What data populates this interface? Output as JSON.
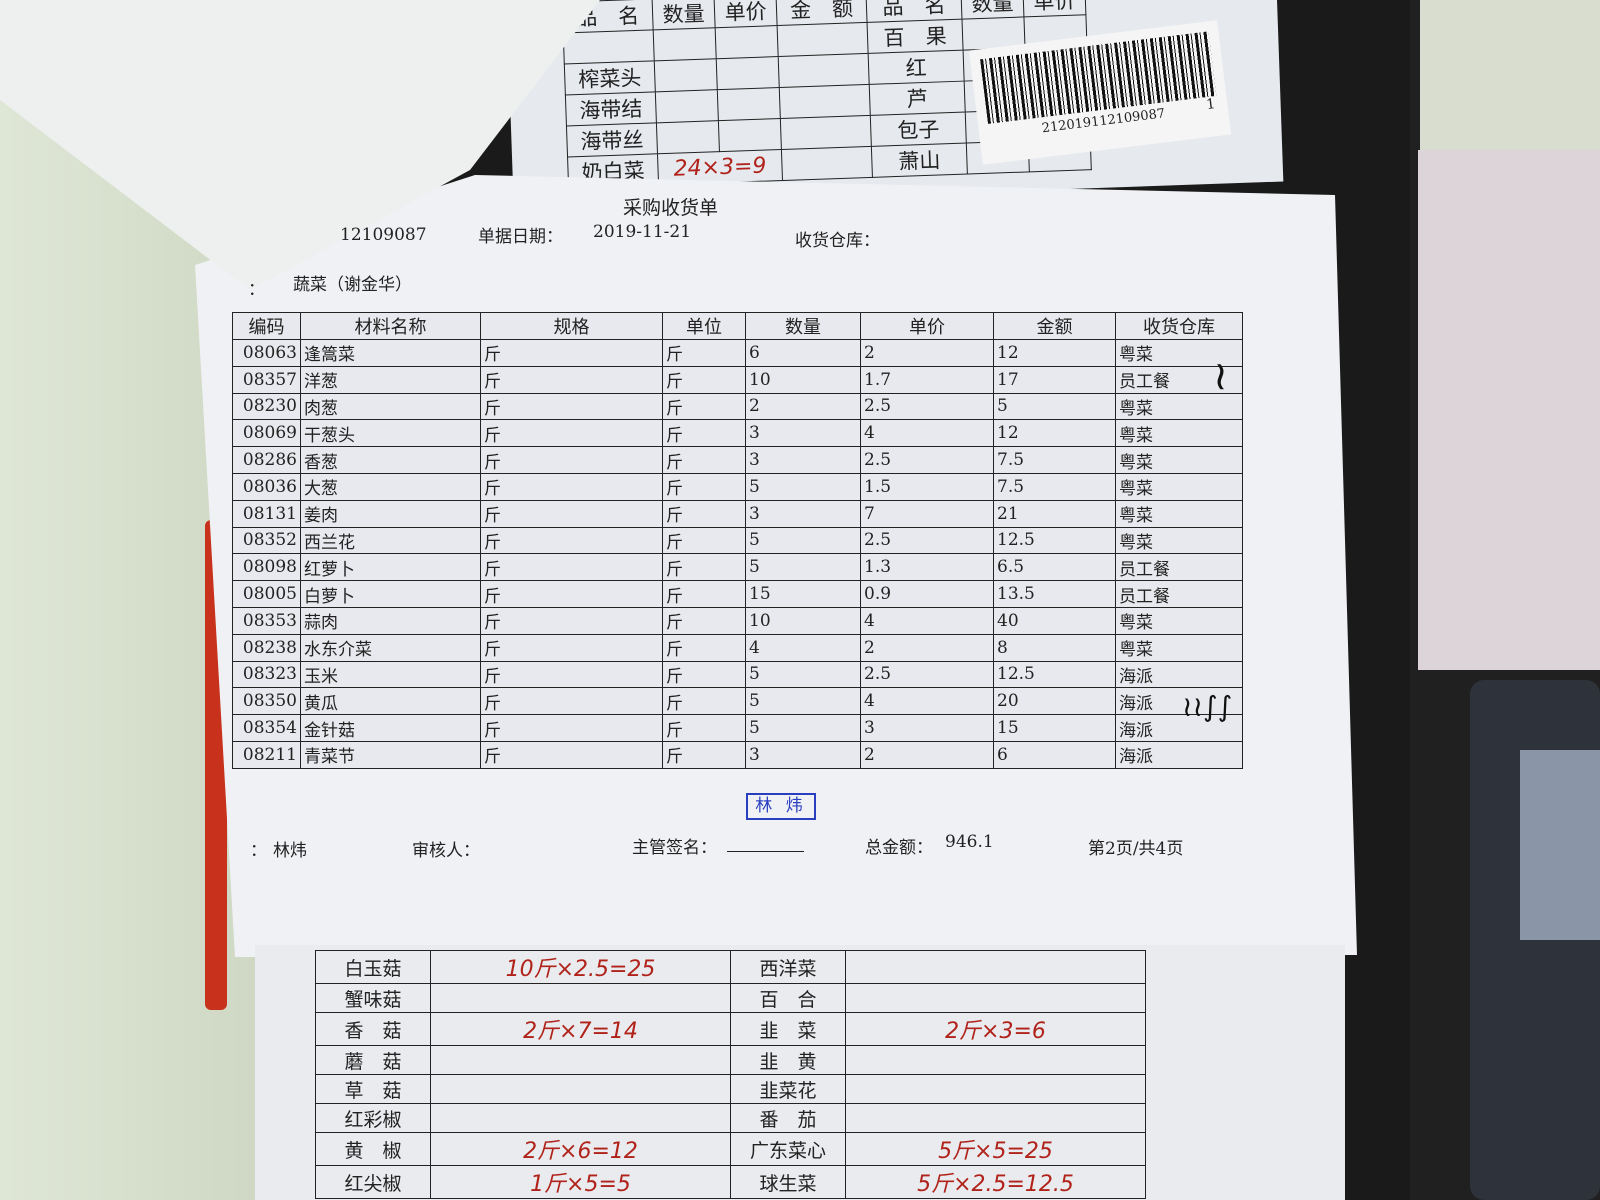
{
  "document": {
    "title": "采购收货单",
    "doc_no_partial": "12109087",
    "date_label": "单据日期：",
    "date": "2019-11-21",
    "warehouse_label": "收货仓库：",
    "supplier_label": "：",
    "supplier": "蔬菜（谢金华）",
    "columns": [
      "编码",
      "材料名称",
      "规格",
      "单位",
      "数量",
      "单价",
      "金额",
      "收货仓库"
    ],
    "rows": [
      [
        "08063",
        "逢篙菜",
        "斤",
        "斤",
        "6",
        "2",
        "12",
        "粤菜"
      ],
      [
        "08357",
        "洋葱",
        "斤",
        "斤",
        "10",
        "1.7",
        "17",
        "员工餐"
      ],
      [
        "08230",
        "肉葱",
        "斤",
        "斤",
        "2",
        "2.5",
        "5",
        "粤菜"
      ],
      [
        "08069",
        "干葱头",
        "斤",
        "斤",
        "3",
        "4",
        "12",
        "粤菜"
      ],
      [
        "08286",
        "香葱",
        "斤",
        "斤",
        "3",
        "2.5",
        "7.5",
        "粤菜"
      ],
      [
        "08036",
        "大葱",
        "斤",
        "斤",
        "5",
        "1.5",
        "7.5",
        "粤菜"
      ],
      [
        "08131",
        "姜肉",
        "斤",
        "斤",
        "3",
        "7",
        "21",
        "粤菜"
      ],
      [
        "08352",
        "西兰花",
        "斤",
        "斤",
        "5",
        "2.5",
        "12.5",
        "粤菜"
      ],
      [
        "08098",
        "红萝卜",
        "斤",
        "斤",
        "5",
        "1.3",
        "6.5",
        "员工餐"
      ],
      [
        "08005",
        "白萝卜",
        "斤",
        "斤",
        "15",
        "0.9",
        "13.5",
        "员工餐"
      ],
      [
        "08353",
        "蒜肉",
        "斤",
        "斤",
        "10",
        "4",
        "40",
        "粤菜"
      ],
      [
        "08238",
        "水东介菜",
        "斤",
        "斤",
        "4",
        "2",
        "8",
        "粤菜"
      ],
      [
        "08323",
        "玉米",
        "斤",
        "斤",
        "5",
        "2.5",
        "12.5",
        "海派"
      ],
      [
        "08350",
        "黄瓜",
        "斤",
        "斤",
        "5",
        "4",
        "20",
        "海派"
      ],
      [
        "08354",
        "金针菇",
        "斤",
        "斤",
        "5",
        "3",
        "15",
        "海派"
      ],
      [
        "08211",
        "青菜节",
        "斤",
        "斤",
        "3",
        "2",
        "6",
        "海派"
      ]
    ],
    "stamp": "林 炜",
    "footer": {
      "maker_label": "：",
      "maker": "林炜",
      "reviewer_label": "审核人：",
      "supervisor_label": "主管签名：",
      "total_label": "总金额：",
      "total": "946.1",
      "page": "第2页/共4页"
    }
  },
  "top_sheet": {
    "headers": [
      "品　名",
      "数量",
      "单价",
      "金　额",
      "品　名",
      "数量",
      "单价"
    ],
    "rows": [
      [
        "榨菜头",
        "",
        "",
        "",
        "红"
      ],
      [
        "海带结",
        "",
        "",
        "",
        "芦"
      ],
      [
        "海带丝",
        "",
        "",
        "",
        "包子"
      ],
      [
        "奶白菜",
        "24×3=9",
        "",
        "",
        "萧山"
      ]
    ],
    "right_first": "百　果",
    "barcode_number": "212019112109087",
    "barcode_suffix": "1"
  },
  "bottom_sheet": {
    "rows": [
      [
        "白玉菇",
        "10斤×2.5=25",
        "西洋菜",
        ""
      ],
      [
        "蟹味菇",
        "",
        "百　合",
        ""
      ],
      [
        "香　菇",
        "2斤×7=14",
        "韭　菜",
        "2斤×3=6"
      ],
      [
        "蘑　菇",
        "",
        "韭　黄",
        ""
      ],
      [
        "草　菇",
        "",
        "韭菜花",
        ""
      ],
      [
        "红彩椒",
        "",
        "番　茄",
        ""
      ],
      [
        "黄　椒",
        "2斤×6=12",
        "广东菜心",
        "5斤×5=25"
      ],
      [
        "红尖椒",
        "1斤×5=5",
        "球生菜",
        "5斤×2.5=12.5"
      ]
    ]
  }
}
